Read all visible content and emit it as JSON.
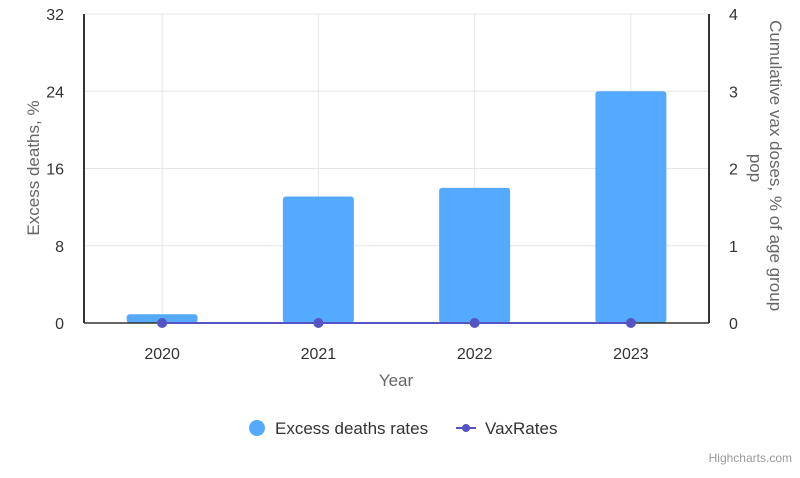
{
  "chart_data": {
    "type": "bar",
    "title": "",
    "xlabel": "Year",
    "categories": [
      "2020",
      "2021",
      "2022",
      "2023"
    ],
    "y_left": {
      "label": "Excess deaths, %",
      "range": [
        0,
        32
      ],
      "ticks": [
        "0",
        "8",
        "16",
        "24",
        "32"
      ],
      "tick_values": [
        0,
        8,
        16,
        24,
        32
      ]
    },
    "y_right": {
      "label": "Cumulative vax doses, % of age group pop",
      "label_lines": [
        "Cumulative vax doses, % of age group",
        "pop"
      ],
      "range": [
        0,
        4
      ],
      "ticks": [
        "0",
        "1",
        "2",
        "3",
        "4"
      ],
      "tick_values": [
        0,
        1,
        2,
        3,
        4
      ]
    },
    "series": [
      {
        "name": "Excess deaths rates",
        "type": "bar",
        "axis": "left",
        "color": "#55aaff",
        "values": [
          0.9,
          13.1,
          14.0,
          24.0
        ]
      },
      {
        "name": "VaxRates",
        "type": "line",
        "axis": "right",
        "color": "#5454c4",
        "values": [
          0,
          0,
          0,
          0
        ]
      }
    ],
    "grid": true,
    "legend_position": "bottom-center"
  },
  "credits": "Highcharts.com"
}
